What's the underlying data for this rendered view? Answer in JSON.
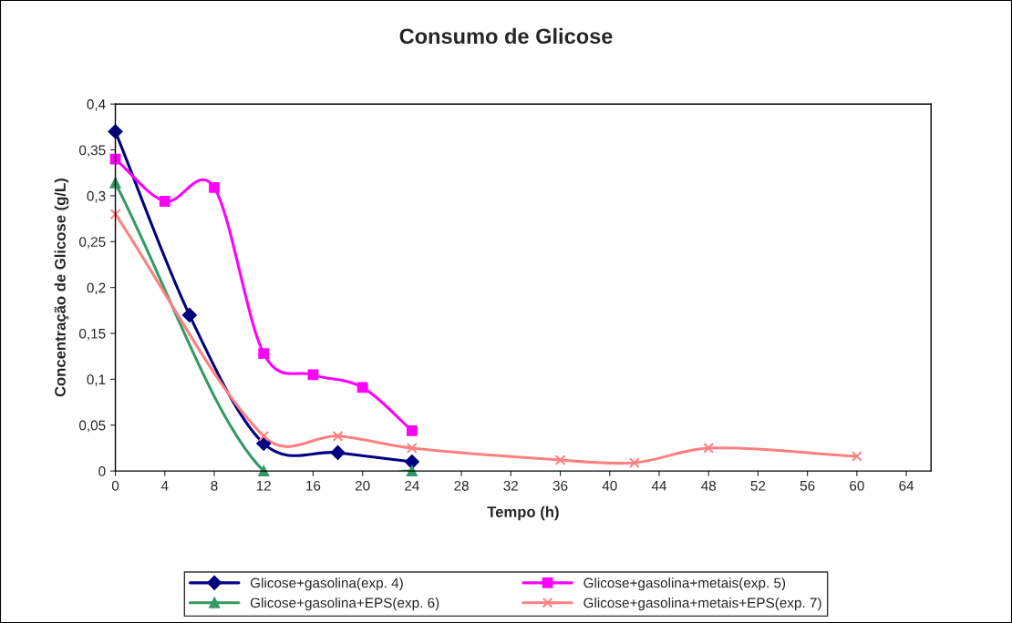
{
  "chart_data": {
    "type": "line",
    "title": "Consumo de Glicose",
    "xlabel": "Tempo (h)",
    "ylabel": "Concentração de Glicose (g/L)",
    "xlim": [
      0,
      66
    ],
    "xticks": [
      0,
      4,
      8,
      12,
      16,
      20,
      24,
      28,
      32,
      36,
      40,
      44,
      48,
      52,
      56,
      60,
      64
    ],
    "ylim": [
      0,
      0.4
    ],
    "yticks": [
      0,
      {
        "value": 0.05,
        "label": "0,05"
      },
      {
        "value": 0.1,
        "label": "0,1"
      },
      {
        "value": 0.15,
        "label": "0,15"
      },
      {
        "value": 0.2,
        "label": "0,2"
      },
      {
        "value": 0.25,
        "label": "0,25"
      },
      {
        "value": 0.3,
        "label": "0,3"
      },
      {
        "value": 0.35,
        "label": "0,35"
      },
      {
        "value": 0.4,
        "label": "0,4"
      }
    ],
    "grid": false,
    "legend": "bottom",
    "series": [
      {
        "name": "Glicose+gasolina(exp. 4)",
        "color": "#000080",
        "marker": "diamond",
        "x": [
          0,
          6,
          12,
          18,
          24
        ],
        "values": [
          0.37,
          0.17,
          0.03,
          0.02,
          0.01
        ]
      },
      {
        "name": "Glicose+gasolina+metais(exp. 5)",
        "color": "#ff00ff",
        "marker": "square",
        "x": [
          0,
          4,
          8,
          12,
          16,
          20,
          24
        ],
        "values": [
          0.34,
          0.294,
          0.309,
          0.128,
          0.105,
          0.091,
          0.044
        ]
      },
      {
        "name": "Glicose+gasolina+EPS(exp. 6)",
        "color": "#339966",
        "marker": "triangle",
        "x": [
          0,
          12,
          24
        ],
        "values": [
          0.314,
          0,
          0
        ]
      },
      {
        "name": "Glicose+gasolina+metais+EPS(exp. 7)",
        "color": "#ff8080",
        "marker": "cross",
        "x": [
          0,
          12,
          18,
          24,
          36,
          42,
          48,
          60
        ],
        "values": [
          0.28,
          0.038,
          0.038,
          0.025,
          0.012,
          0.009,
          0.025,
          0.016
        ]
      }
    ]
  }
}
